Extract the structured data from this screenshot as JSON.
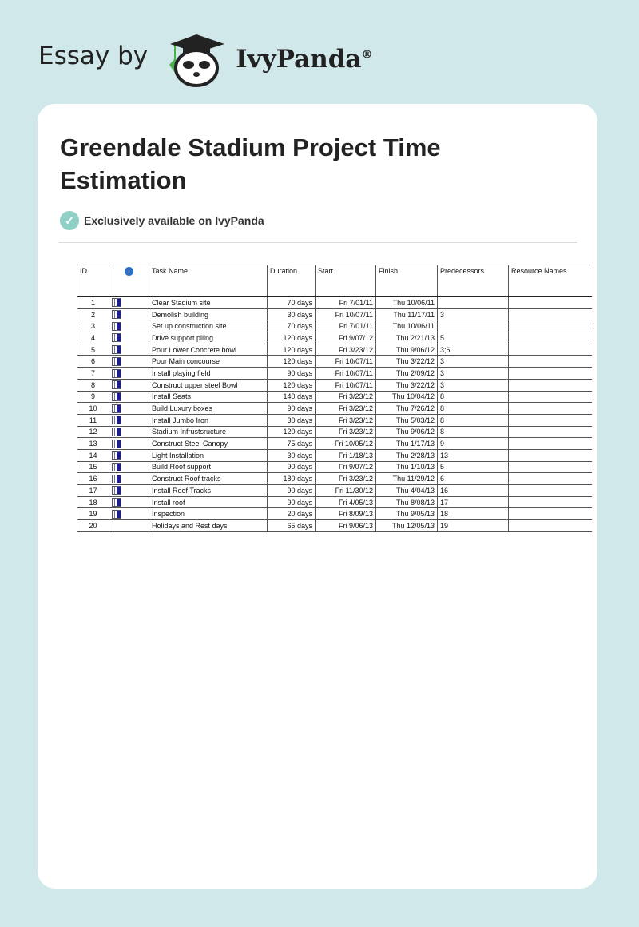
{
  "brand": {
    "prefix": "Essay by",
    "name": "IvyPanda",
    "mark": "®"
  },
  "document": {
    "title": "Greendale Stadium Project Time Estimation",
    "badge": "Exclusively available on IvyPanda"
  },
  "table": {
    "columns": [
      "ID",
      "info-icon",
      "Task Name",
      "Duration",
      "Start",
      "Finish",
      "Predecessors",
      "Resource Names"
    ],
    "rows": [
      [
        "1",
        "Clear Stadium site",
        "70 days",
        "Fri 7/01/11",
        "Thu 10/06/11",
        ""
      ],
      [
        "2",
        "Demolish building",
        "30 days",
        "Fri 10/07/11",
        "Thu 11/17/11",
        "3"
      ],
      [
        "3",
        "Set up construction site",
        "70 days",
        "Fri 7/01/11",
        "Thu 10/06/11",
        ""
      ],
      [
        "4",
        "Drive support piling",
        "120 days",
        "Fri 9/07/12",
        "Thu 2/21/13",
        "5"
      ],
      [
        "5",
        "Pour Lower Concrete bowl",
        "120 days",
        "Fri 3/23/12",
        "Thu 9/06/12",
        "3;6"
      ],
      [
        "6",
        "Pour Main concourse",
        "120 days",
        "Fri 10/07/11",
        "Thu 3/22/12",
        "3"
      ],
      [
        "7",
        "Install playing field",
        "90 days",
        "Fri 10/07/11",
        "Thu 2/09/12",
        "3"
      ],
      [
        "8",
        "Construct upper steel Bowl",
        "120 days",
        "Fri 10/07/11",
        "Thu 3/22/12",
        "3"
      ],
      [
        "9",
        "Install Seats",
        "140 days",
        "Fri 3/23/12",
        "Thu 10/04/12",
        "8"
      ],
      [
        "10",
        "Build Luxury boxes",
        "90 days",
        "Fri 3/23/12",
        "Thu 7/26/12",
        "8"
      ],
      [
        "11",
        "Install Jumbo Iron",
        "30 days",
        "Fri 3/23/12",
        "Thu 5/03/12",
        "8"
      ],
      [
        "12",
        "Stadium Infrustsructure",
        "120 days",
        "Fri 3/23/12",
        "Thu 9/06/12",
        "8"
      ],
      [
        "13",
        "Construct Steel Canopy",
        "75 days",
        "Fri 10/05/12",
        "Thu 1/17/13",
        "9"
      ],
      [
        "14",
        "Light Installation",
        "30 days",
        "Fri 1/18/13",
        "Thu 2/28/13",
        "13"
      ],
      [
        "15",
        "Build Roof support",
        "90 days",
        "Fri 9/07/12",
        "Thu 1/10/13",
        "5"
      ],
      [
        "16",
        "Construct Roof tracks",
        "180 days",
        "Fri 3/23/12",
        "Thu 11/29/12",
        "6"
      ],
      [
        "17",
        "Install Roof Tracks",
        "90 days",
        "Fri 11/30/12",
        "Thu 4/04/13",
        "16"
      ],
      [
        "18",
        "Install roof",
        "90 days",
        "Fri 4/05/13",
        "Thu 8/08/13",
        "17"
      ],
      [
        "19",
        "Inspection",
        "20 days",
        "Fri 8/09/13",
        "Thu 9/05/13",
        "18"
      ],
      [
        "20",
        "Holidays and Rest days",
        "65 days",
        "Fri 9/06/13",
        "Thu 12/05/13",
        "19"
      ]
    ],
    "rows_with_gantt_icon": 19
  }
}
